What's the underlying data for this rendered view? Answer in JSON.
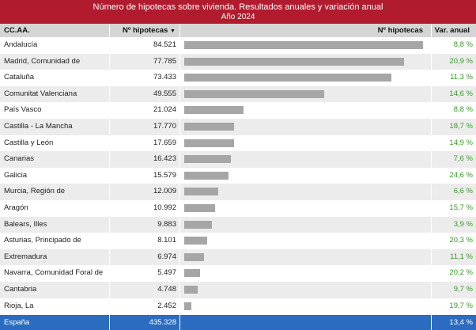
{
  "title": "Número de hipotecas sobre vivienda. Resultados anuales  y variación anual",
  "subtitle": "Año 2024",
  "headers": {
    "region": "CC.AA.",
    "count": "Nº hipotecas",
    "sort_icon": "sort-down-icon",
    "bar": "Nº hipotecas",
    "var": "Var. anual"
  },
  "chart_data": {
    "type": "bar",
    "orientation": "horizontal",
    "categories": [
      "Andalucía",
      "Madrid, Comunidad de",
      "Cataluña",
      "Comunitat Valenciana",
      "País Vasco",
      "Castilla - La Mancha",
      "Castilla y León",
      "Canarias",
      "Galicia",
      "Murcia, Región de",
      "Aragón",
      "Balears, Illes",
      "Asturias, Principado de",
      "Extremadura",
      "Navarra, Comunidad Foral de",
      "Cantabria",
      "Rioja, La"
    ],
    "values": [
      84521,
      77785,
      73433,
      49555,
      21024,
      17770,
      17659,
      16423,
      15579,
      12009,
      10992,
      9883,
      8101,
      6974,
      5497,
      4748,
      2452
    ],
    "value_labels": [
      "84.521",
      "77.785",
      "73.433",
      "49.555",
      "21.024",
      "17.770",
      "17.659",
      "16.423",
      "15.579",
      "12.009",
      "10.992",
      "9.883",
      "8.101",
      "6.974",
      "5.497",
      "4.748",
      "2.452"
    ],
    "variation_labels": [
      "8,8 %",
      "20,9 %",
      "11,3 %",
      "14,6 %",
      "8,8 %",
      "18,7 %",
      "14,9 %",
      "7,6 %",
      "24,6 %",
      "6,6 %",
      "15,7 %",
      "3,9 %",
      "20,3 %",
      "11,1 %",
      "20,2 %",
      "9,7 %",
      "19,7 %"
    ],
    "bar_color": "#a6a6a6",
    "variation_color": "#3a9a2a"
  },
  "total": {
    "name": "España",
    "value": "435.328",
    "var": "13,4 %"
  },
  "colors": {
    "title_bg": "#b01c2e",
    "header_bg": "#d5d5d5",
    "total_bg": "#2b6cc0",
    "row_alt": "#ececec"
  }
}
